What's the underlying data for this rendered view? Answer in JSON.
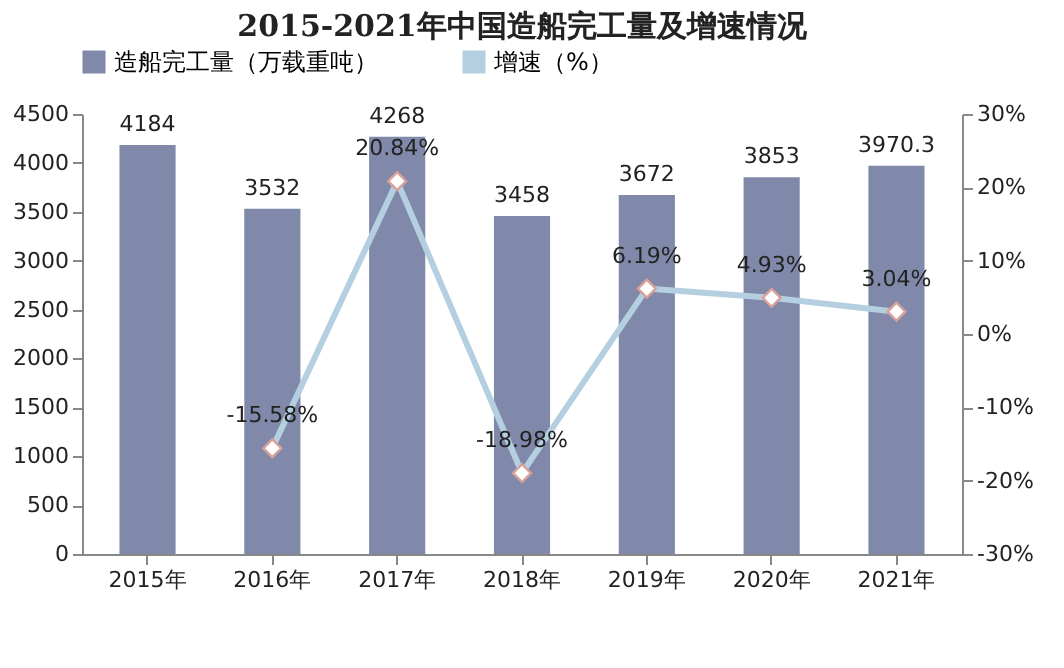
{
  "chart_data": {
    "type": "bar",
    "title": "2015-2021年中国造船完工量及增速情况",
    "categories": [
      "2015年",
      "2016年",
      "2017年",
      "2018年",
      "2019年",
      "2020年",
      "2021年"
    ],
    "series": [
      {
        "name": "造船完工量（万载重吨）",
        "color": "#8089aa",
        "values": [
          4184,
          3532,
          4268,
          3458,
          3672,
          3853,
          3970.3
        ],
        "value_labels": [
          "4184",
          "3532",
          "4268",
          "3458",
          "3672",
          "3853",
          "3970.3"
        ]
      },
      {
        "name": "增速（%）",
        "type": "line",
        "axis": "y2",
        "color": "#b4d0e0",
        "values": [
          null,
          -15.58,
          20.84,
          -18.98,
          6.19,
          4.93,
          3.04
        ],
        "value_labels": [
          null,
          "-15.58%",
          "20.84%",
          "-18.98%",
          "6.19%",
          "4.93%",
          "3.04%"
        ]
      }
    ],
    "ylim": [
      0,
      4500
    ],
    "yticks": [
      0,
      500,
      1000,
      1500,
      2000,
      2500,
      3000,
      3500,
      4000,
      4500
    ],
    "y2lim": [
      -30,
      30
    ],
    "y2ticks": [
      {
        "value": -30,
        "label": "-30%"
      },
      {
        "value": -20,
        "label": "-20%"
      },
      {
        "value": -10,
        "label": "-10%"
      },
      {
        "value": 0,
        "label": "0%"
      },
      {
        "value": 10,
        "label": "10%"
      },
      {
        "value": 20,
        "label": "20%"
      },
      {
        "value": 30,
        "label": "30%"
      }
    ],
    "marker": "diamond",
    "legend": "top",
    "grid": false
  }
}
